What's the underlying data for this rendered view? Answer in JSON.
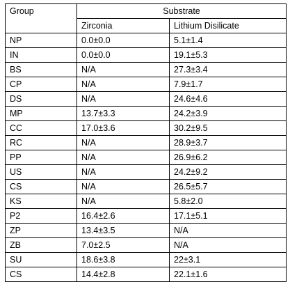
{
  "table": {
    "header": {
      "group": "Group",
      "substrate": "Substrate",
      "columns": [
        "Zirconia",
        "Lithium Disilicate"
      ]
    },
    "rows": [
      [
        "NP",
        "0.0±0.0",
        "5.1±1.4"
      ],
      [
        "IN",
        "0.0±0.0",
        "19.1±5.3"
      ],
      [
        "BS",
        "N/A",
        "27.3±3.4"
      ],
      [
        "CP",
        "N/A",
        "7.9±1.7"
      ],
      [
        "DS",
        "N/A",
        "24.6±4.6"
      ],
      [
        "MP",
        "13.7±3.3",
        "24.2±3.9"
      ],
      [
        "CC",
        "17.0±3.6",
        "30.2±9.5"
      ],
      [
        "RC",
        "N/A",
        "28.9±3.7"
      ],
      [
        "PP",
        "N/A",
        "26.9±6.2"
      ],
      [
        "US",
        "N/A",
        "24.2±9.2"
      ],
      [
        "CS",
        "N/A",
        "26.5±5.7"
      ],
      [
        "KS",
        "N/A",
        "5.8±2.0"
      ],
      [
        "P2",
        "16.4±2.6",
        "17.1±5.1"
      ],
      [
        "ZP",
        "13.4±3.5",
        "N/A"
      ],
      [
        "ZB",
        "7.0±2.5",
        "N/A"
      ],
      [
        "SU",
        "18.6±3.8",
        "22±3.1"
      ],
      [
        "CS",
        "14.4±2.8",
        "22.1±1.6"
      ]
    ]
  }
}
